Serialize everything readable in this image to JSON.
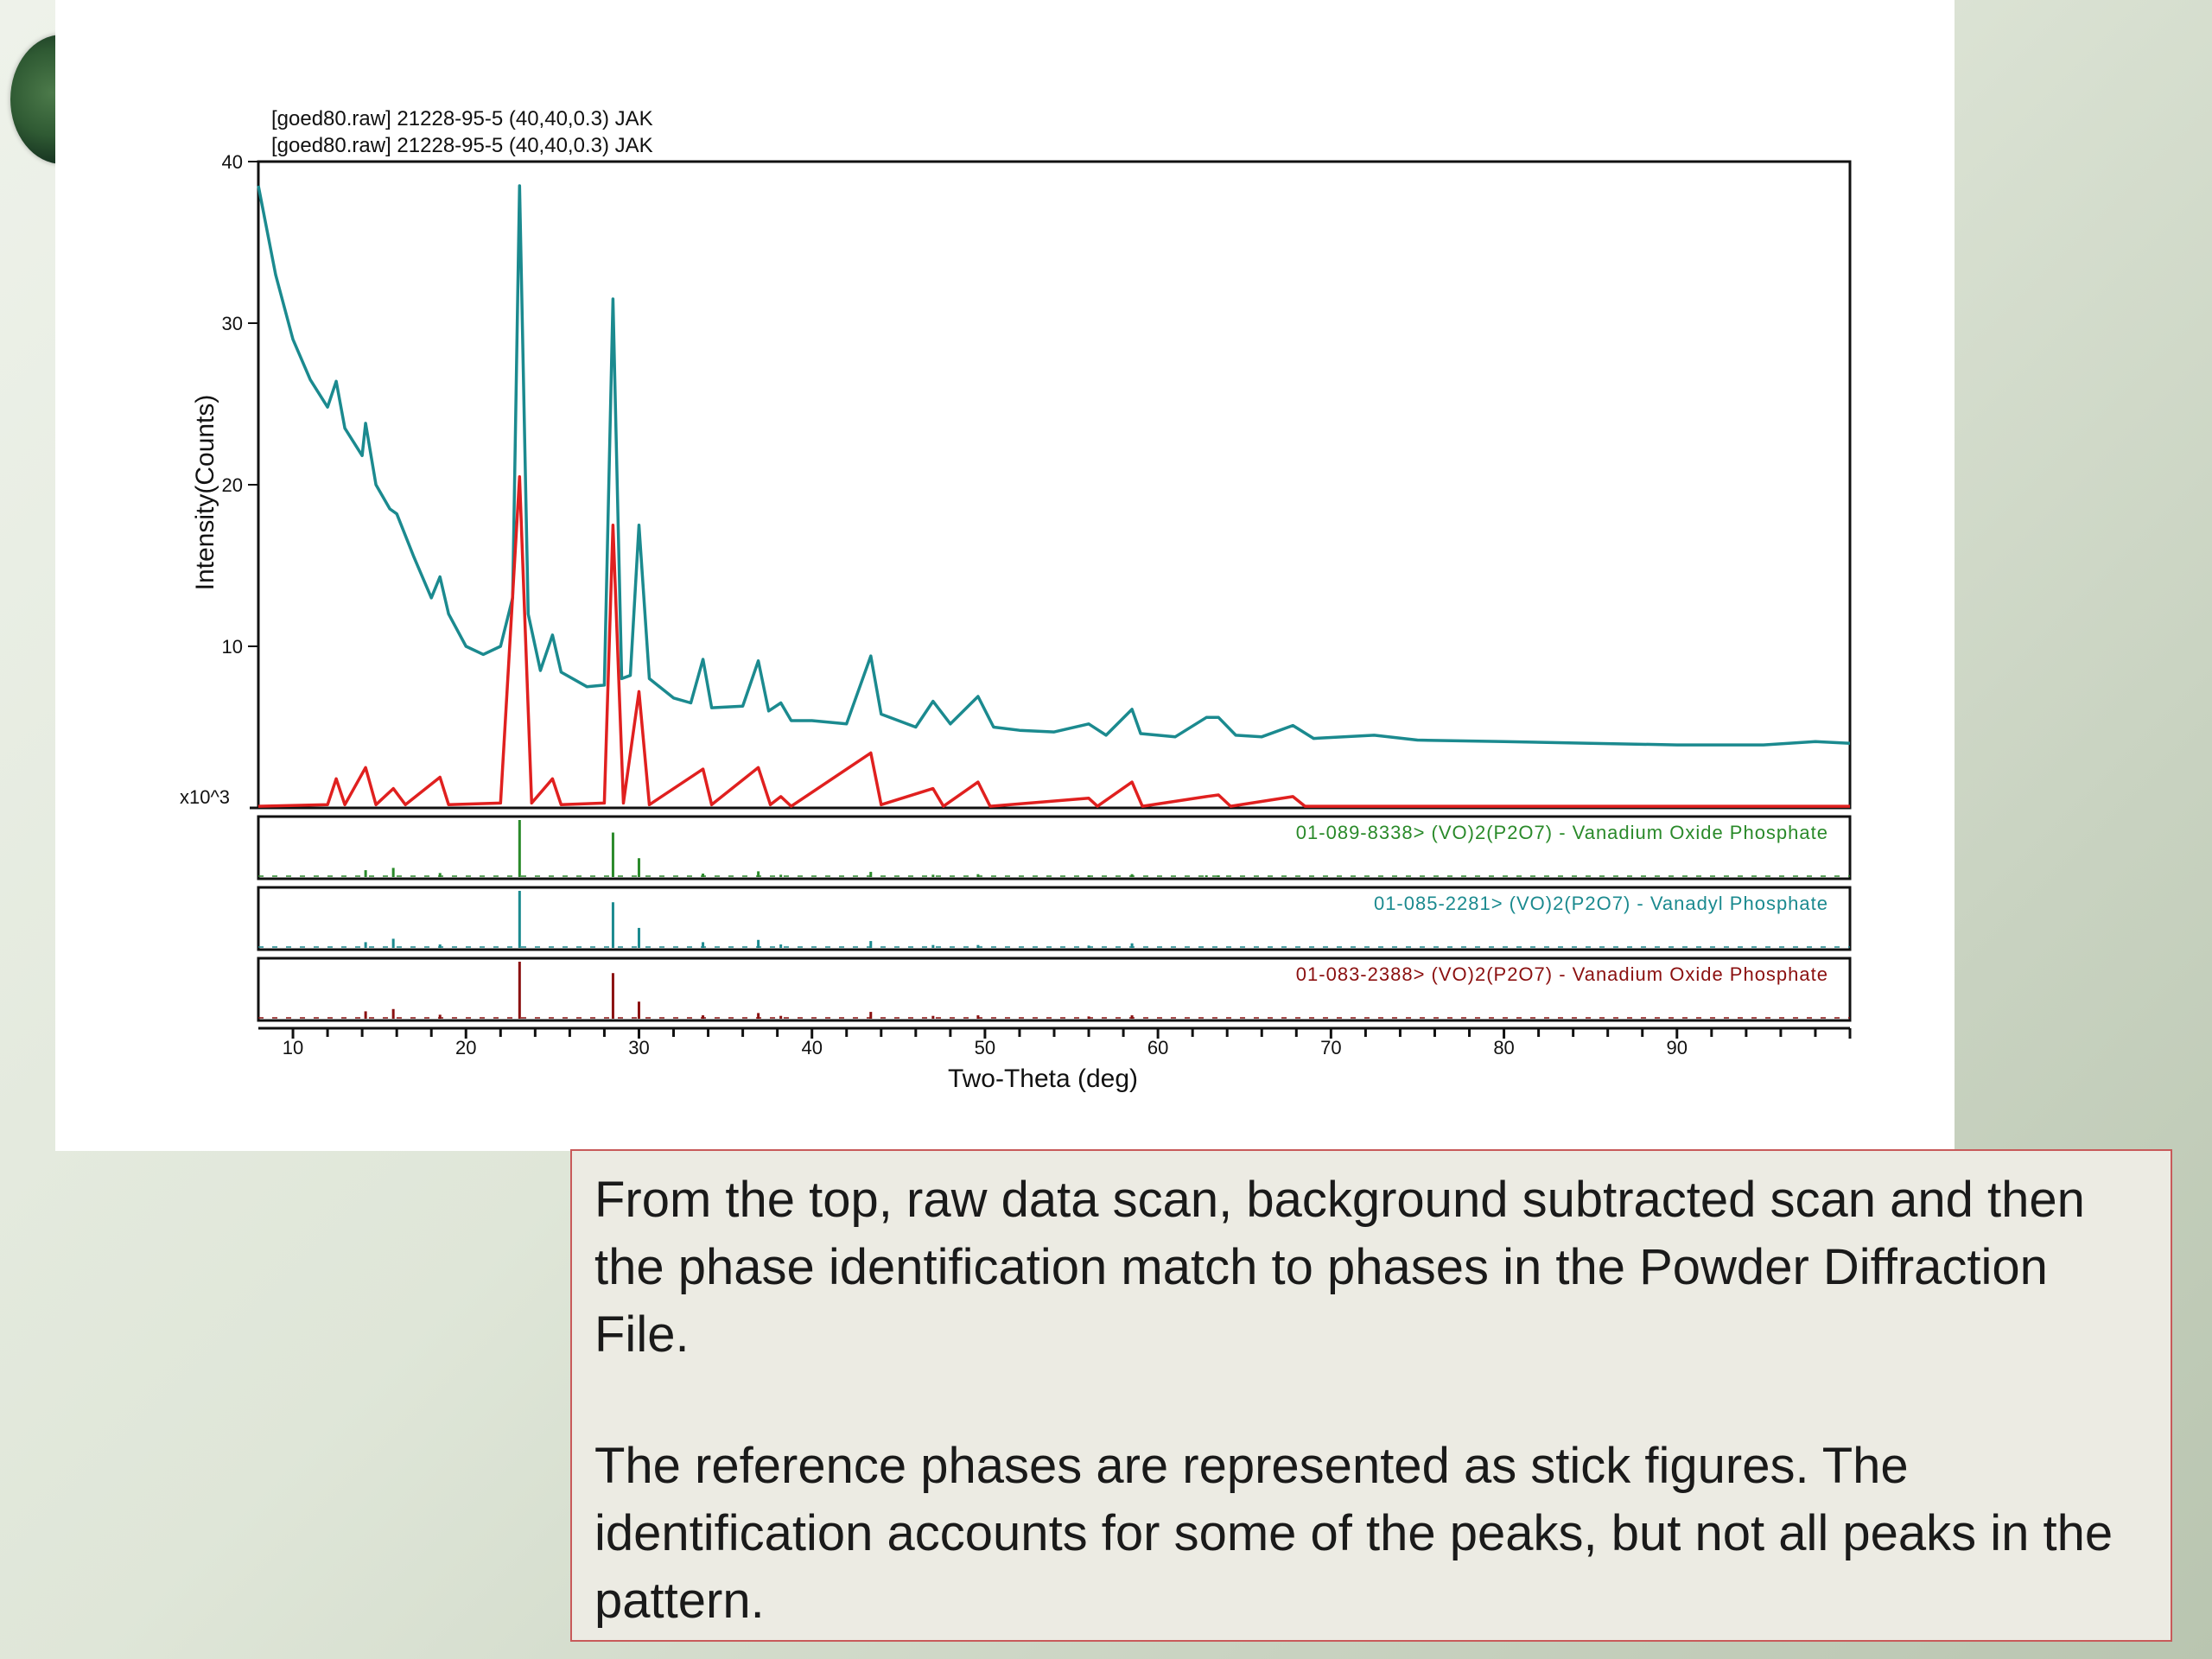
{
  "caption": {
    "paragraph1": "From the top, raw data scan, background subtracted scan and then the phase identification match to phases in the Powder Diffraction File.",
    "paragraph2": "The reference phases are represented as stick figures. The identification accounts for some of the peaks, but not all peaks in the pattern."
  },
  "chart_data": {
    "type": "line",
    "xlabel": "Two-Theta (deg)",
    "ylabel": "Intensity(Counts)",
    "y_multiplier_label": "x10^3",
    "xlim": [
      8,
      100
    ],
    "ylim": [
      0,
      40
    ],
    "x_ticks": [
      10,
      20,
      30,
      40,
      50,
      60,
      70,
      80,
      90
    ],
    "y_ticks": [
      10,
      20,
      30,
      40
    ],
    "grid": false,
    "legend_position": "top-left above plot",
    "series": [
      {
        "name": "[goed80.raw] 21228-95-5 (40,40,0.3) JAK",
        "color": "#1b8a8f",
        "points": [
          [
            8,
            38.5
          ],
          [
            9,
            33
          ],
          [
            10,
            29
          ],
          [
            11,
            26.5
          ],
          [
            12,
            24.8
          ],
          [
            12.5,
            26.4
          ],
          [
            13,
            23.5
          ],
          [
            14,
            21.8
          ],
          [
            14.2,
            23.8
          ],
          [
            14.8,
            20
          ],
          [
            15.6,
            18.5
          ],
          [
            16,
            18.2
          ],
          [
            17,
            15.5
          ],
          [
            18,
            13
          ],
          [
            18.5,
            14.3
          ],
          [
            19,
            12
          ],
          [
            20,
            10
          ],
          [
            21,
            9.5
          ],
          [
            22,
            10
          ],
          [
            22.7,
            13
          ],
          [
            23.1,
            38.5
          ],
          [
            23.6,
            12
          ],
          [
            24.3,
            8.5
          ],
          [
            25,
            10.7
          ],
          [
            25.5,
            8.4
          ],
          [
            27,
            7.5
          ],
          [
            28,
            7.6
          ],
          [
            28.5,
            31.5
          ],
          [
            29,
            8
          ],
          [
            29.5,
            8.2
          ],
          [
            30,
            17.5
          ],
          [
            30.6,
            8
          ],
          [
            32,
            6.8
          ],
          [
            33,
            6.5
          ],
          [
            33.7,
            9.2
          ],
          [
            34.2,
            6.2
          ],
          [
            36,
            6.3
          ],
          [
            36.9,
            9.1
          ],
          [
            37.5,
            6
          ],
          [
            38.2,
            6.5
          ],
          [
            38.8,
            5.4
          ],
          [
            40,
            5.4
          ],
          [
            41,
            5.3
          ],
          [
            42,
            5.2
          ],
          [
            43.4,
            9.4
          ],
          [
            44,
            5.8
          ],
          [
            46,
            5
          ],
          [
            47,
            6.6
          ],
          [
            48,
            5.2
          ],
          [
            49.6,
            6.9
          ],
          [
            50.5,
            5
          ],
          [
            52,
            4.8
          ],
          [
            54,
            4.7
          ],
          [
            56,
            5.2
          ],
          [
            57,
            4.5
          ],
          [
            58.5,
            6.1
          ],
          [
            59,
            4.6
          ],
          [
            61,
            4.4
          ],
          [
            62.8,
            5.6
          ],
          [
            63.5,
            5.6
          ],
          [
            64.5,
            4.5
          ],
          [
            66,
            4.4
          ],
          [
            67.8,
            5.1
          ],
          [
            69,
            4.3
          ],
          [
            72.5,
            4.5
          ],
          [
            75,
            4.2
          ],
          [
            80,
            4.1
          ],
          [
            85,
            4
          ],
          [
            90,
            3.9
          ],
          [
            95,
            3.9
          ],
          [
            98,
            4.1
          ],
          [
            100,
            4
          ]
        ]
      },
      {
        "name": "[goed80.raw] 21228-95-5 (40,40,0.3) JAK",
        "color": "#e0201f",
        "points": [
          [
            8,
            0.1
          ],
          [
            12,
            0.2
          ],
          [
            12.5,
            1.8
          ],
          [
            13,
            0.2
          ],
          [
            14.2,
            2.5
          ],
          [
            14.8,
            0.2
          ],
          [
            15.8,
            1.2
          ],
          [
            16.5,
            0.2
          ],
          [
            18.5,
            1.9
          ],
          [
            19,
            0.2
          ],
          [
            22,
            0.3
          ],
          [
            23.1,
            20.5
          ],
          [
            23.8,
            0.3
          ],
          [
            25,
            1.8
          ],
          [
            25.5,
            0.2
          ],
          [
            28,
            0.3
          ],
          [
            28.5,
            17.5
          ],
          [
            29.1,
            0.3
          ],
          [
            30,
            7.2
          ],
          [
            30.6,
            0.2
          ],
          [
            33.7,
            2.4
          ],
          [
            34.2,
            0.2
          ],
          [
            36.9,
            2.5
          ],
          [
            37.6,
            0.2
          ],
          [
            38.2,
            0.7
          ],
          [
            38.8,
            0.1
          ],
          [
            43.4,
            3.4
          ],
          [
            44,
            0.2
          ],
          [
            47,
            1.2
          ],
          [
            47.6,
            0.1
          ],
          [
            49.6,
            1.6
          ],
          [
            50.3,
            0.1
          ],
          [
            56,
            0.6
          ],
          [
            56.5,
            0.1
          ],
          [
            58.5,
            1.6
          ],
          [
            59.1,
            0.1
          ],
          [
            62.8,
            0.7
          ],
          [
            63.5,
            0.8
          ],
          [
            64.2,
            0.1
          ],
          [
            67.8,
            0.7
          ],
          [
            68.5,
            0.1
          ],
          [
            100,
            0.1
          ]
        ]
      }
    ],
    "reference_phases": [
      {
        "label": "01-089-8338> (VO)2(P2O7) - Vanadium Oxide Phosphate",
        "color": "#2a8a2a",
        "sticks": [
          [
            14.2,
            0.12
          ],
          [
            15.8,
            0.16
          ],
          [
            18.5,
            0.07
          ],
          [
            23.1,
            1.0
          ],
          [
            28.5,
            0.78
          ],
          [
            30,
            0.33
          ],
          [
            33.7,
            0.06
          ],
          [
            36.9,
            0.1
          ],
          [
            38.2,
            0.04
          ],
          [
            43.4,
            0.09
          ],
          [
            47,
            0.04
          ],
          [
            49.6,
            0.05
          ],
          [
            56,
            0.03
          ],
          [
            58.5,
            0.05
          ],
          [
            62.8,
            0.03
          ],
          [
            63.5,
            0.03
          ]
        ]
      },
      {
        "label": "01-085-2281> (VO)2(P2O7) - Vanadyl Phosphate",
        "color": "#1b8a8f",
        "sticks": [
          [
            14.2,
            0.1
          ],
          [
            15.8,
            0.16
          ],
          [
            18.5,
            0.06
          ],
          [
            23.1,
            1.0
          ],
          [
            28.5,
            0.8
          ],
          [
            30,
            0.35
          ],
          [
            33.7,
            0.1
          ],
          [
            36.9,
            0.14
          ],
          [
            38.2,
            0.06
          ],
          [
            43.4,
            0.12
          ],
          [
            47,
            0.05
          ],
          [
            49.6,
            0.05
          ],
          [
            56,
            0.04
          ],
          [
            58.5,
            0.08
          ]
        ]
      },
      {
        "label": "01-083-2388> (VO)2(P2O7) - Vanadium Oxide Phosphate",
        "color": "#8b1010",
        "sticks": [
          [
            14.2,
            0.13
          ],
          [
            15.8,
            0.17
          ],
          [
            18.5,
            0.07
          ],
          [
            23.1,
            1.0
          ],
          [
            28.5,
            0.8
          ],
          [
            30,
            0.3
          ],
          [
            33.7,
            0.06
          ],
          [
            36.9,
            0.1
          ],
          [
            38.2,
            0.05
          ],
          [
            43.4,
            0.12
          ],
          [
            47,
            0.05
          ],
          [
            49.6,
            0.06
          ],
          [
            56,
            0.04
          ],
          [
            58.5,
            0.06
          ]
        ]
      }
    ]
  }
}
